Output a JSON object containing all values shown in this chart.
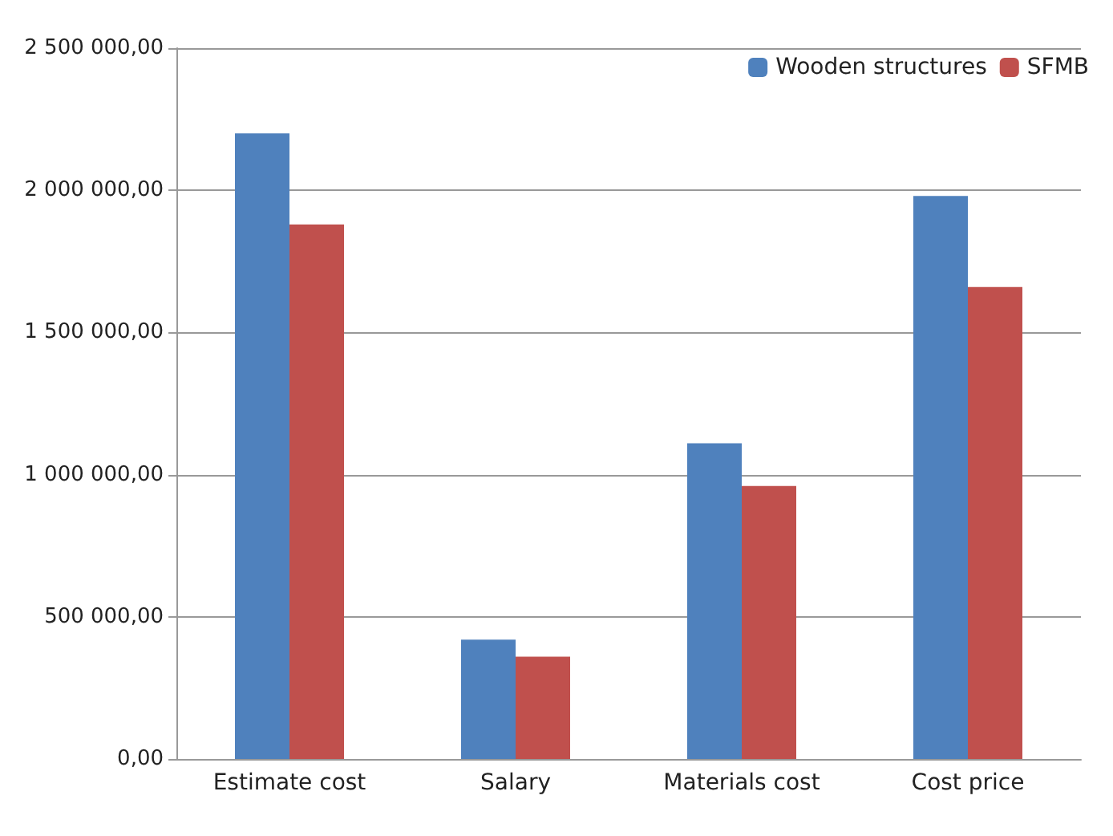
{
  "chart_data": {
    "type": "bar",
    "categories": [
      "Estimate cost",
      "Salary",
      "Materials cost",
      "Cost price"
    ],
    "series": [
      {
        "name": "Wooden structures",
        "color": "#4f81bd",
        "values": [
          2200000,
          420000,
          1110000,
          1980000
        ]
      },
      {
        "name": "SFMB",
        "color": "#c0504d",
        "values": [
          1880000,
          360000,
          960000,
          1660000
        ]
      }
    ],
    "ylim": [
      0,
      2500000
    ],
    "yticks": [
      {
        "value": 0,
        "label": "0,00"
      },
      {
        "value": 500000,
        "label": "500 000,00"
      },
      {
        "value": 1000000,
        "label": "1 000 000,00"
      },
      {
        "value": 1500000,
        "label": "1 500 000,00"
      },
      {
        "value": 2000000,
        "label": "2 000 000,00"
      },
      {
        "value": 2500000,
        "label": "2 500 000,00"
      }
    ],
    "grid": "y",
    "legend": "top right"
  }
}
